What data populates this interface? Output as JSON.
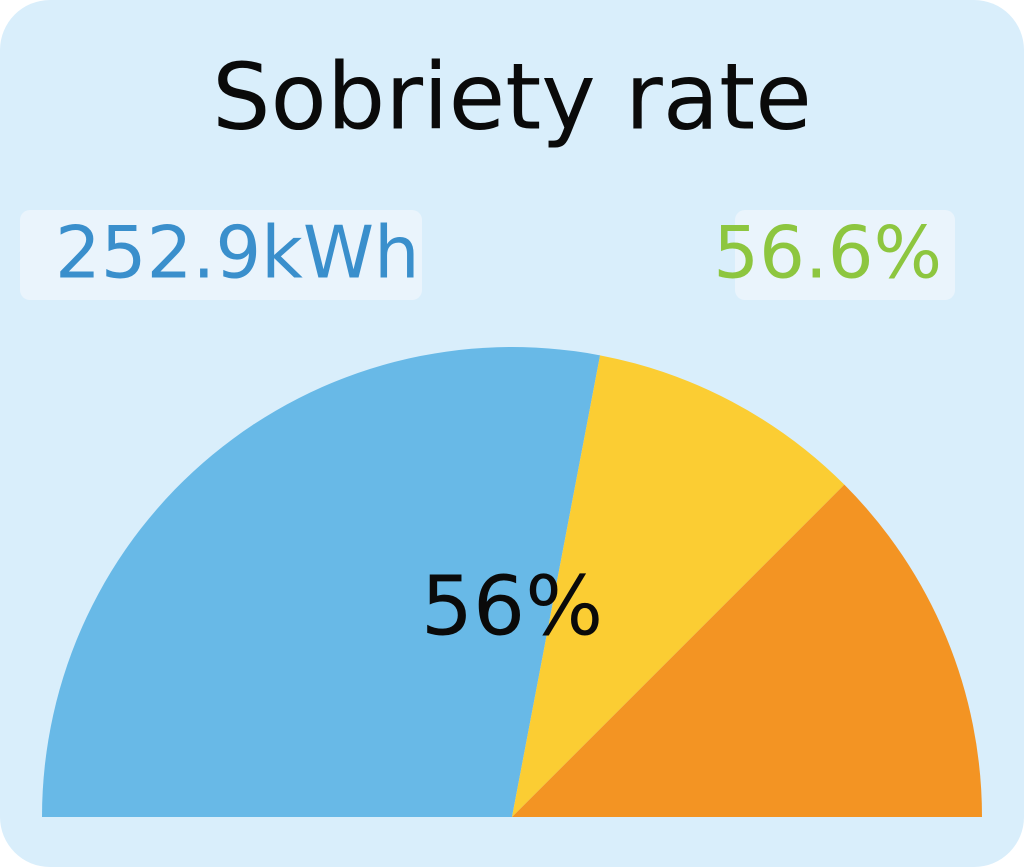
{
  "chart_data": {
    "type": "gauge",
    "title": "Sobriety rate",
    "range": [
      0,
      100
    ],
    "value": 56,
    "value_label": "56%",
    "segments": [
      {
        "color": "#68b9e7",
        "value": 56
      },
      {
        "color": "#fbcd33",
        "value": 19
      },
      {
        "color": "#f39423",
        "value": 25
      }
    ],
    "badges": [
      {
        "text": "252.9kWh",
        "color": "#3a8fcc"
      },
      {
        "text": "56.6%",
        "color": "#8dc63f"
      }
    ]
  }
}
